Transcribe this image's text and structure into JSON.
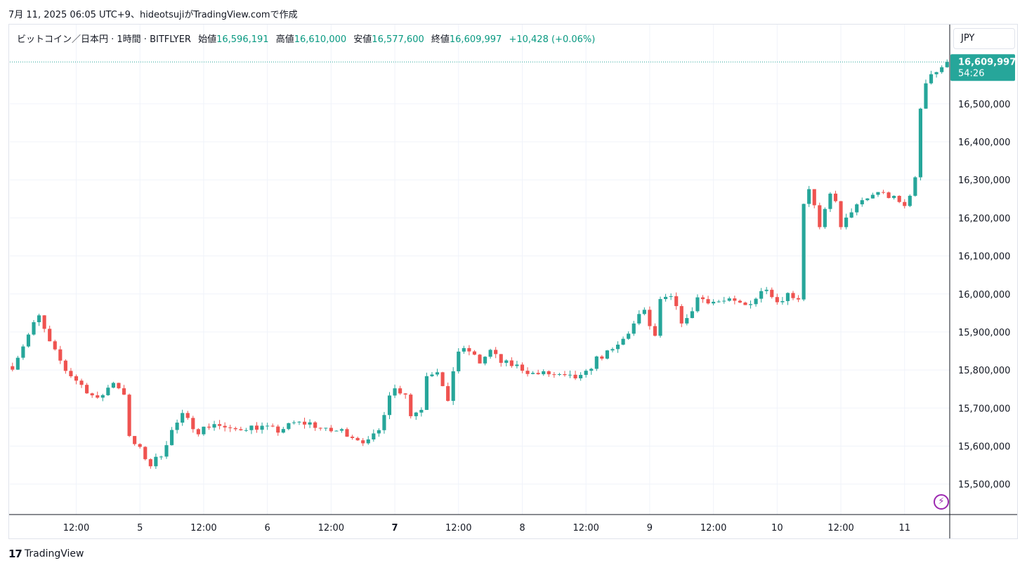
{
  "caption": "7月 11, 2025 06:05 UTC+9、hideotsujiがTradingView.comで作成",
  "legend": {
    "symbol": "ビットコイン／日本円 · 1時間 · BITFLYER",
    "open_label": "始値",
    "open": "16,596,191",
    "high_label": "高値",
    "high": "16,610,000",
    "low_label": "安値",
    "low": "16,577,600",
    "close_label": "終値",
    "close": "16,609,997",
    "change": "+10,428 (+0.06%)"
  },
  "currency": "JPY",
  "last_price": {
    "price": "16,609,997",
    "countdown": "54:26"
  },
  "footer_logo": "TradingView",
  "flash_icon": "lightning-icon",
  "colors": {
    "up": "#26a69a",
    "down": "#ef5350",
    "grid": "#f0f3fa",
    "axis": "#131722"
  },
  "chart_data": {
    "type": "candlestick",
    "y_ticks": [
      15500000,
      15600000,
      15700000,
      15800000,
      15900000,
      16000000,
      16100000,
      16200000,
      16300000,
      16400000,
      16500000
    ],
    "y_tick_labels": [
      "15,500,000",
      "15,600,000",
      "15,700,000",
      "15,800,000",
      "15,900,000",
      "16,000,000",
      "16,100,000",
      "16,200,000",
      "16,300,000",
      "16,400,000",
      "16,500,000"
    ],
    "ylim": [
      15420000,
      16640000
    ],
    "x_ticks": [
      {
        "label": "12:00",
        "bold": false
      },
      {
        "label": "5",
        "bold": false
      },
      {
        "label": "12:00",
        "bold": false
      },
      {
        "label": "6",
        "bold": false
      },
      {
        "label": "12:00",
        "bold": false
      },
      {
        "label": "7",
        "bold": true
      },
      {
        "label": "12:00",
        "bold": false
      },
      {
        "label": "8",
        "bold": false
      },
      {
        "label": "12:00",
        "bold": false
      },
      {
        "label": "9",
        "bold": false
      },
      {
        "label": "12:00",
        "bold": false
      },
      {
        "label": "10",
        "bold": false
      },
      {
        "label": "12:00",
        "bold": false
      },
      {
        "label": "11",
        "bold": false
      }
    ],
    "x_tick_index": [
      12,
      24,
      36,
      48,
      60,
      72,
      84,
      96,
      108,
      120,
      132,
      144,
      156,
      168
    ],
    "price_line": 16609997,
    "close_path": [
      [
        0,
        15810000
      ],
      [
        4,
        15920000
      ],
      [
        5,
        15940000
      ],
      [
        7,
        15870000
      ],
      [
        10,
        15800000
      ],
      [
        13,
        15760000
      ],
      [
        16,
        15720000
      ],
      [
        19,
        15770000
      ],
      [
        21,
        15740000
      ],
      [
        22,
        15620000
      ],
      [
        24,
        15590000
      ],
      [
        26,
        15550000
      ],
      [
        28,
        15580000
      ],
      [
        30,
        15640000
      ],
      [
        32,
        15680000
      ],
      [
        35,
        15640000
      ],
      [
        38,
        15660000
      ],
      [
        41,
        15640000
      ],
      [
        44,
        15650000
      ],
      [
        47,
        15650000
      ],
      [
        50,
        15640000
      ],
      [
        53,
        15660000
      ],
      [
        56,
        15660000
      ],
      [
        59,
        15640000
      ],
      [
        62,
        15640000
      ],
      [
        65,
        15620000
      ],
      [
        67,
        15610000
      ],
      [
        69,
        15640000
      ],
      [
        71,
        15740000
      ],
      [
        72,
        15750000
      ],
      [
        74,
        15740000
      ],
      [
        75,
        15680000
      ],
      [
        77,
        15700000
      ],
      [
        78,
        15790000
      ],
      [
        80,
        15800000
      ],
      [
        82,
        15710000
      ],
      [
        83,
        15800000
      ],
      [
        84,
        15850000
      ],
      [
        86,
        15850000
      ],
      [
        88,
        15820000
      ],
      [
        90,
        15850000
      ],
      [
        92,
        15820000
      ],
      [
        95,
        15810000
      ],
      [
        98,
        15790000
      ],
      [
        101,
        15790000
      ],
      [
        104,
        15780000
      ],
      [
        107,
        15780000
      ],
      [
        108,
        15790000
      ],
      [
        110,
        15830000
      ],
      [
        113,
        15850000
      ],
      [
        115,
        15880000
      ],
      [
        117,
        15920000
      ],
      [
        119,
        15960000
      ],
      [
        120,
        15910000
      ],
      [
        121,
        15890000
      ],
      [
        122,
        15980000
      ],
      [
        124,
        15990000
      ],
      [
        126,
        15930000
      ],
      [
        127,
        15930000
      ],
      [
        129,
        15990000
      ],
      [
        132,
        15980000
      ],
      [
        135,
        15980000
      ],
      [
        138,
        15970000
      ],
      [
        140,
        15990000
      ],
      [
        142,
        16020000
      ],
      [
        144,
        15980000
      ],
      [
        146,
        16000000
      ],
      [
        148,
        15990000
      ],
      [
        149,
        16240000
      ],
      [
        150,
        16280000
      ],
      [
        151,
        16230000
      ],
      [
        152,
        16170000
      ],
      [
        154,
        16260000
      ],
      [
        155,
        16250000
      ],
      [
        156,
        16170000
      ],
      [
        158,
        16220000
      ],
      [
        160,
        16240000
      ],
      [
        163,
        16270000
      ],
      [
        166,
        16250000
      ],
      [
        168,
        16230000
      ],
      [
        170,
        16300000
      ],
      [
        171,
        16490000
      ],
      [
        172,
        16560000
      ],
      [
        173,
        16580000
      ],
      [
        175,
        16590000
      ],
      [
        176,
        16610000
      ]
    ],
    "bar_count": 177
  }
}
